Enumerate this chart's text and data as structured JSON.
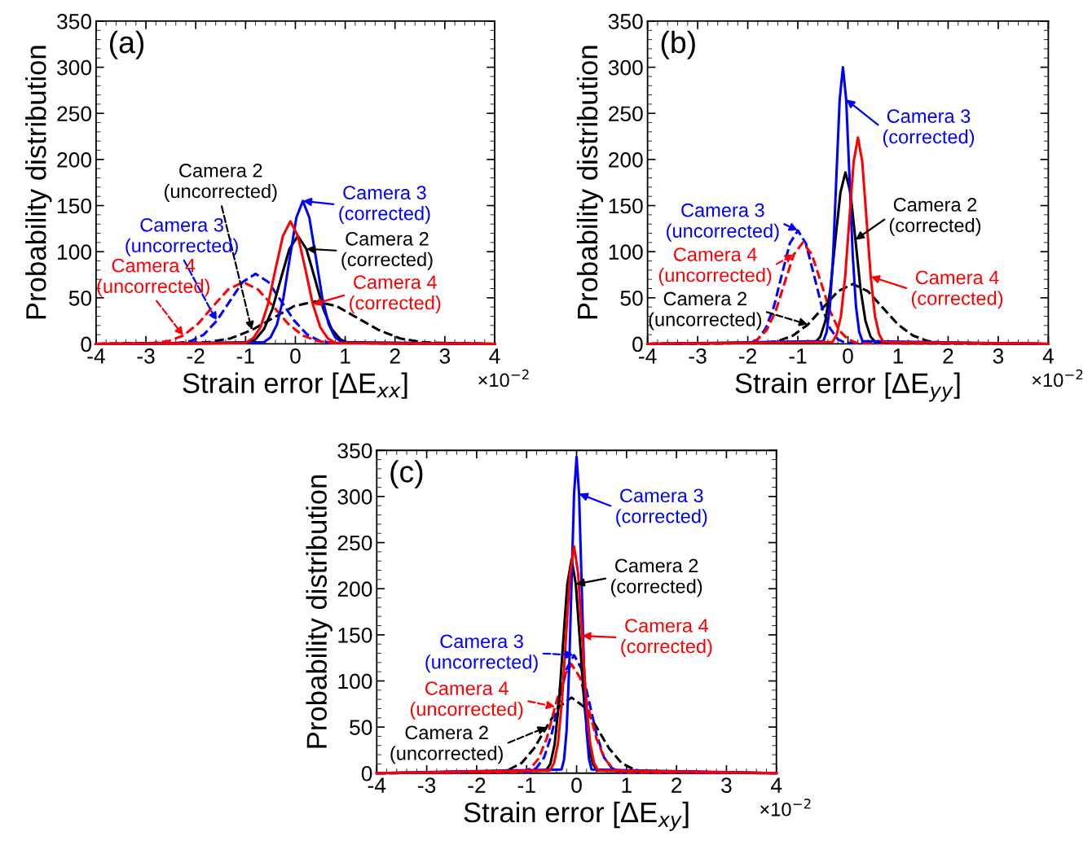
{
  "chart_data": [
    {
      "type": "line",
      "xlabel": "Strain error [ΔE$_{xx}$]",
      "ylabel": "Probability distribution",
      "xlim": [
        -4,
        4
      ],
      "ylim": [
        0,
        350
      ],
      "xticks": [
        -4,
        -3,
        -2,
        -1,
        0,
        1,
        2,
        3,
        4
      ],
      "yticks": [
        0,
        50,
        100,
        150,
        200,
        250,
        300,
        350
      ],
      "grid": false,
      "legend": false,
      "series": [
        {
          "color": "#000000",
          "line_style": "dashed",
          "x": [
            -4,
            -2.15,
            -1.725,
            -1.3,
            -0.875,
            -0.45,
            -0.025,
            0.4,
            0.825,
            1.25,
            1.675,
            2.1,
            2.525,
            2.95,
            4
          ],
          "values": [
            0,
            1,
            2,
            6,
            15,
            28,
            41,
            46,
            41,
            28,
            15,
            6,
            2,
            1,
            0
          ]
        },
        {
          "color": "#0000ff",
          "line_style": "dashed",
          "x": [
            -4,
            -2.36,
            -2.1,
            -1.84,
            -1.58,
            -1.32,
            -1.06,
            -0.8,
            -0.54,
            -0.28,
            -0.02,
            0.24,
            0.5,
            0.76,
            4
          ],
          "values": [
            0,
            1,
            3,
            10,
            25,
            46,
            67,
            76,
            67,
            46,
            25,
            10,
            3,
            1,
            0
          ]
        },
        {
          "color": "#ff0000",
          "line_style": "dashed",
          "x": [
            -4,
            -2.85,
            -2.55,
            -2.25,
            -1.95,
            -1.65,
            -1.35,
            -1.05,
            -0.75,
            -0.45,
            -0.15,
            0.15,
            0.45,
            0.75,
            4
          ],
          "values": [
            0,
            1,
            3,
            9,
            22,
            41,
            59,
            67,
            59,
            41,
            22,
            9,
            3,
            1,
            0
          ]
        },
        {
          "color": "#000000",
          "line_style": "solid",
          "x": [
            -4,
            -0.97,
            -0.8,
            -0.63,
            -0.46,
            -0.29,
            -0.12,
            0.05,
            0.22,
            0.39,
            0.56,
            0.73,
            0.9,
            1.07,
            4
          ],
          "values": [
            0,
            1,
            5,
            16,
            38,
            71,
            103,
            117,
            103,
            71,
            38,
            16,
            5,
            1,
            0
          ]
        },
        {
          "color": "#0000ff",
          "line_style": "solid",
          "x": [
            -4,
            -0.63,
            -0.5,
            -0.37,
            -0.24,
            -0.11,
            0.02,
            0.15,
            0.28,
            0.41,
            0.54,
            0.67,
            0.8,
            0.93,
            4
          ],
          "values": [
            0,
            2,
            7,
            21,
            50,
            94,
            137,
            155,
            137,
            94,
            50,
            21,
            7,
            2,
            0
          ]
        },
        {
          "color": "#ff0000",
          "line_style": "solid",
          "x": [
            -4,
            -1.0,
            -0.85,
            -0.7,
            -0.55,
            -0.4,
            -0.25,
            -0.1,
            0.05,
            0.2,
            0.35,
            0.5,
            0.65,
            0.8,
            4
          ],
          "values": [
            0,
            1,
            6,
            18,
            43,
            81,
            117,
            133,
            117,
            81,
            43,
            18,
            6,
            1,
            0
          ]
        }
      ],
      "annotations": [
        {
          "text": "Camera 2\n(uncorrected)",
          "x": -0.875,
          "y": 15
        },
        {
          "text": "Camera 3\n(uncorrected)",
          "x": -1.58,
          "y": 25
        },
        {
          "text": "Camera 4\n(uncorrected)",
          "x": -2.25,
          "y": 9
        },
        {
          "text": "Camera 2\n(corrected)",
          "x": 0.22,
          "y": 103
        },
        {
          "text": "Camera 3\n(corrected)",
          "x": 0.15,
          "y": 155
        },
        {
          "text": "Camera 4\n(corrected)",
          "x": 0.35,
          "y": 43
        },
        "(a)",
        "×10$^{−2}$"
      ]
    },
    {
      "type": "line",
      "xlabel": "Strain error [ΔE$_{yy}$]",
      "ylabel": "Probability distribution",
      "xlim": [
        -4,
        4
      ],
      "ylim": [
        0,
        350
      ],
      "xticks": [
        -4,
        -3,
        -2,
        -1,
        0,
        1,
        2,
        3,
        4
      ],
      "yticks": [
        0,
        50,
        100,
        150,
        200,
        250,
        300,
        350
      ],
      "grid": false,
      "legend": false,
      "series": [
        {
          "color": "#000000",
          "line_style": "dashed",
          "x": [
            -4,
            -1.7,
            -1.4,
            -1.1,
            -0.8,
            -0.5,
            -0.2,
            0.1,
            0.4,
            0.7,
            1.0,
            1.3,
            1.6,
            1.9,
            4
          ],
          "values": [
            0,
            1,
            3,
            9,
            21,
            39,
            57,
            65,
            57,
            39,
            21,
            9,
            3,
            1,
            0
          ]
        },
        {
          "color": "#0000ff",
          "line_style": "dashed",
          "x": [
            -4,
            -1.96,
            -1.8,
            -1.64,
            -1.48,
            -1.32,
            -1.16,
            -1.0,
            -0.84,
            -0.68,
            -0.52,
            -0.36,
            -0.2,
            -0.04,
            4
          ],
          "values": [
            0,
            1,
            5,
            17,
            40,
            75,
            109,
            123,
            109,
            75,
            40,
            17,
            5,
            1,
            0
          ]
        },
        {
          "color": "#ff0000",
          "line_style": "dashed",
          "x": [
            -4,
            -1.98,
            -1.8,
            -1.62,
            -1.44,
            -1.26,
            -1.08,
            -0.9,
            -0.72,
            -0.54,
            -0.36,
            -0.18,
            0,
            0.18,
            4
          ],
          "values": [
            0,
            1,
            5,
            15,
            36,
            67,
            97,
            110,
            97,
            67,
            36,
            15,
            5,
            1,
            0
          ]
        },
        {
          "color": "#000000",
          "line_style": "solid",
          "x": [
            -4,
            -0.65,
            -0.55,
            -0.45,
            -0.35,
            -0.25,
            -0.15,
            -0.05,
            0.05,
            0.15,
            0.25,
            0.35,
            0.45,
            0.55,
            4
          ],
          "values": [
            0,
            2,
            8,
            25,
            60,
            113,
            164,
            186,
            164,
            113,
            60,
            25,
            8,
            2,
            0
          ]
        },
        {
          "color": "#0000ff",
          "line_style": "solid",
          "x": [
            -4,
            -0.49,
            -0.425,
            -0.36,
            -0.295,
            -0.23,
            -0.165,
            -0.1,
            -0.035,
            0.03,
            0.095,
            0.16,
            0.225,
            0.29,
            4
          ],
          "values": [
            0,
            3,
            13,
            41,
            97,
            182,
            265,
            300,
            265,
            182,
            97,
            41,
            13,
            3,
            0
          ]
        },
        {
          "color": "#ff0000",
          "line_style": "solid",
          "x": [
            -4,
            -0.31,
            -0.225,
            -0.14,
            -0.055,
            0.03,
            0.115,
            0.2,
            0.285,
            0.37,
            0.455,
            0.54,
            0.625,
            0.71,
            4
          ],
          "values": [
            0,
            2,
            10,
            30,
            73,
            136,
            198,
            224,
            198,
            136,
            73,
            30,
            10,
            2,
            0
          ]
        }
      ],
      "annotations": [
        {
          "text": "Camera 2\n(uncorrected)",
          "x": -0.8,
          "y": 21
        },
        {
          "text": "Camera 3\n(uncorrected)",
          "x": -1.0,
          "y": 123
        },
        {
          "text": "Camera 4\n(uncorrected)",
          "x": -1.08,
          "y": 97
        },
        {
          "text": "Camera 2\n(corrected)",
          "x": 0.15,
          "y": 113
        },
        {
          "text": "Camera 3\n(corrected)",
          "x": -0.035,
          "y": 265
        },
        {
          "text": "Camera 4\n(corrected)",
          "x": 0.455,
          "y": 73
        },
        "(b)",
        "×10$^{−2}$"
      ]
    },
    {
      "type": "line",
      "xlabel": "Strain error [ΔE$_{xy}$]",
      "ylabel": "Probability distribution",
      "xlim": [
        -4,
        4
      ],
      "ylim": [
        0,
        350
      ],
      "xticks": [
        -4,
        -3,
        -2,
        -1,
        0,
        1,
        2,
        3,
        4
      ],
      "yticks": [
        0,
        50,
        100,
        150,
        200,
        250,
        300,
        350
      ],
      "grid": false,
      "legend": false,
      "series": [
        {
          "color": "#000000",
          "line_style": "dashed",
          "x": [
            -4,
            -1.6,
            -1.35,
            -1.1,
            -0.85,
            -0.6,
            -0.35,
            -0.1,
            0.15,
            0.4,
            0.65,
            0.9,
            1.15,
            1.4,
            4
          ],
          "values": [
            0,
            1,
            4,
            11,
            27,
            50,
            72,
            82,
            72,
            50,
            27,
            11,
            4,
            1,
            0
          ]
        },
        {
          "color": "#0000ff",
          "line_style": "dashed",
          "x": [
            -4,
            -0.95,
            -0.8,
            -0.65,
            -0.5,
            -0.35,
            -0.2,
            -0.05,
            0.1,
            0.25,
            0.4,
            0.55,
            0.7,
            0.85,
            4
          ],
          "values": [
            0,
            1,
            6,
            17,
            42,
            78,
            113,
            128,
            113,
            78,
            42,
            17,
            6,
            1,
            0
          ]
        },
        {
          "color": "#ff0000",
          "line_style": "dashed",
          "x": [
            -4,
            -1.09,
            -0.925,
            -0.76,
            -0.595,
            -0.43,
            -0.265,
            -0.1,
            0.065,
            0.23,
            0.395,
            0.56,
            0.725,
            0.89,
            4
          ],
          "values": [
            0,
            1,
            5,
            16,
            38,
            72,
            104,
            118,
            104,
            72,
            38,
            16,
            5,
            1,
            0
          ]
        },
        {
          "color": "#000000",
          "line_style": "solid",
          "x": [
            -4,
            -0.61,
            -0.525,
            -0.44,
            -0.355,
            -0.27,
            -0.185,
            -0.1,
            -0.015,
            0.07,
            0.155,
            0.24,
            0.325,
            0.41,
            4
          ],
          "values": [
            0,
            3,
            10,
            31,
            75,
            141,
            205,
            232,
            205,
            141,
            75,
            31,
            10,
            3,
            0
          ]
        },
        {
          "color": "#0000ff",
          "line_style": "solid",
          "x": [
            -4,
            -0.3,
            -0.25,
            -0.2,
            -0.15,
            -0.1,
            -0.05,
            0,
            0.05,
            0.1,
            0.15,
            0.2,
            0.25,
            0.3,
            4
          ],
          "values": [
            0,
            4,
            15,
            46,
            111,
            208,
            303,
            343,
            303,
            208,
            111,
            46,
            15,
            4,
            0
          ]
        },
        {
          "color": "#ff0000",
          "line_style": "solid",
          "x": [
            -4,
            -0.53,
            -0.45,
            -0.37,
            -0.29,
            -0.21,
            -0.13,
            -0.05,
            0.03,
            0.11,
            0.19,
            0.27,
            0.35,
            0.43,
            4
          ],
          "values": [
            0,
            3,
            11,
            33,
            80,
            149,
            217,
            246,
            217,
            149,
            80,
            33,
            11,
            3,
            0
          ]
        }
      ],
      "annotations": [
        {
          "text": "Camera 2\n(uncorrected)",
          "x": -0.6,
          "y": 50
        },
        {
          "text": "Camera 3\n(uncorrected)",
          "x": -0.05,
          "y": 128
        },
        {
          "text": "Camera 4\n(uncorrected)",
          "x": -0.43,
          "y": 72
        },
        {
          "text": "Camera 2\n(corrected)",
          "x": -0.015,
          "y": 205
        },
        {
          "text": "Camera 3\n(corrected)",
          "x": 0.05,
          "y": 303
        },
        {
          "text": "Camera 4\n(corrected)",
          "x": 0.11,
          "y": 149
        },
        "(c)",
        "×10$^{−2}$"
      ]
    }
  ]
}
